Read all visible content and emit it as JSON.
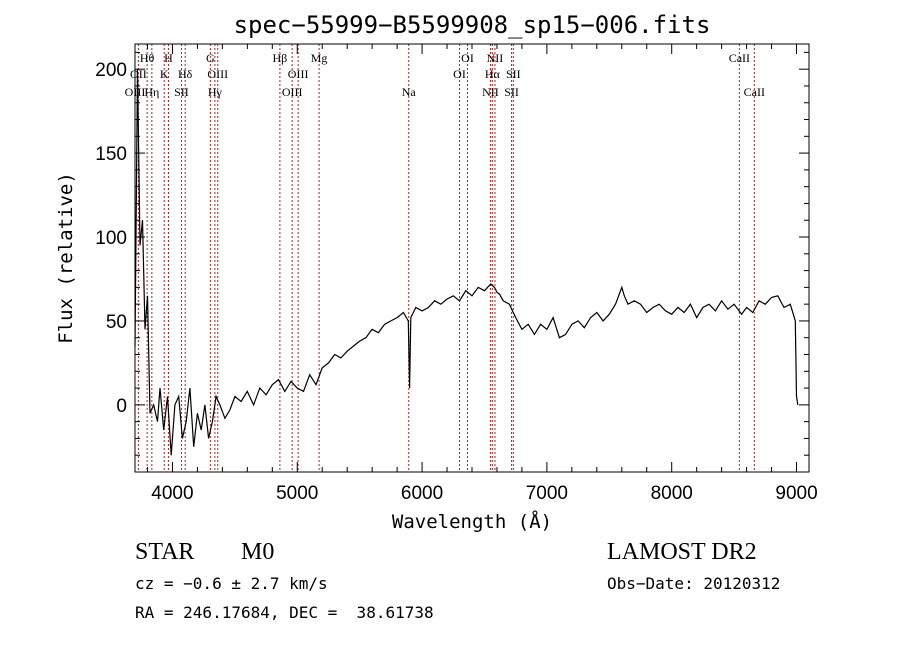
{
  "chart_data": {
    "type": "line",
    "title": "spec−55999−B5599908_sp15−006.fits",
    "xlabel": "Wavelength (Å)",
    "ylabel": "Flux (relative)",
    "xlim": [
      3700,
      9100
    ],
    "ylim": [
      -40,
      215
    ],
    "xticks": [
      4000,
      5000,
      6000,
      7000,
      8000,
      9000
    ],
    "yticks": [
      0,
      50,
      100,
      150,
      200
    ],
    "grid": false,
    "series": [
      {
        "color": "#000000",
        "x": [
          3700,
          3720,
          3740,
          3760,
          3780,
          3800,
          3820,
          3850,
          3880,
          3900,
          3930,
          3960,
          3990,
          4020,
          4050,
          4080,
          4110,
          4140,
          4170,
          4200,
          4230,
          4260,
          4290,
          4320,
          4350,
          4380,
          4420,
          4460,
          4500,
          4550,
          4600,
          4650,
          4700,
          4750,
          4800,
          4850,
          4900,
          4950,
          5000,
          5050,
          5100,
          5150,
          5200,
          5250,
          5300,
          5350,
          5400,
          5450,
          5500,
          5550,
          5600,
          5650,
          5700,
          5750,
          5800,
          5850,
          5890,
          5900,
          5910,
          5950,
          6000,
          6050,
          6100,
          6150,
          6200,
          6250,
          6300,
          6350,
          6400,
          6450,
          6500,
          6550,
          6580,
          6600,
          6620,
          6650,
          6700,
          6750,
          6800,
          6850,
          6900,
          6950,
          7000,
          7050,
          7100,
          7150,
          7200,
          7250,
          7300,
          7350,
          7400,
          7450,
          7500,
          7550,
          7600,
          7620,
          7650,
          7700,
          7750,
          7800,
          7850,
          7900,
          7950,
          8000,
          8050,
          8100,
          8150,
          8200,
          8250,
          8300,
          8350,
          8400,
          8450,
          8500,
          8540,
          8560,
          8600,
          8650,
          8700,
          8750,
          8800,
          8850,
          8900,
          8950,
          8990,
          9000,
          9010
        ],
        "y": [
          35,
          200,
          95,
          110,
          45,
          65,
          -5,
          0,
          -10,
          10,
          -15,
          5,
          -30,
          0,
          5,
          -20,
          -10,
          10,
          -25,
          -5,
          -15,
          0,
          -20,
          -10,
          5,
          0,
          -8,
          -3,
          5,
          2,
          8,
          0,
          10,
          6,
          12,
          15,
          8,
          14,
          10,
          8,
          18,
          12,
          22,
          25,
          30,
          28,
          32,
          35,
          38,
          40,
          45,
          43,
          48,
          50,
          52,
          55,
          50,
          10,
          52,
          58,
          56,
          58,
          62,
          60,
          63,
          65,
          62,
          68,
          65,
          70,
          68,
          72,
          70,
          67,
          66,
          62,
          60,
          52,
          45,
          48,
          42,
          48,
          45,
          52,
          40,
          42,
          48,
          50,
          46,
          52,
          55,
          50,
          54,
          60,
          70,
          65,
          60,
          62,
          60,
          55,
          58,
          60,
          56,
          54,
          58,
          55,
          60,
          52,
          58,
          60,
          56,
          62,
          57,
          60,
          56,
          54,
          58,
          55,
          62,
          60,
          64,
          65,
          58,
          60,
          50,
          5,
          0
        ]
      }
    ],
    "line_markers": [
      {
        "label": "Hθ",
        "x": 3797,
        "row": 1
      },
      {
        "label": "H",
        "x": 3968,
        "row": 1
      },
      {
        "label": "G",
        "x": 4304,
        "row": 1
      },
      {
        "label": "Hβ",
        "x": 4861,
        "row": 1
      },
      {
        "label": "Mg",
        "x": 5175,
        "row": 1
      },
      {
        "label": "OI",
        "x": 6364,
        "row": 1
      },
      {
        "label": "NII",
        "x": 6584,
        "row": 1
      },
      {
        "label": "CaII",
        "x": 8542,
        "row": 1
      },
      {
        "label": "OII",
        "x": 3727,
        "row": 2
      },
      {
        "label": "K",
        "x": 3934,
        "row": 2
      },
      {
        "label": "Hδ",
        "x": 4102,
        "row": 2
      },
      {
        "label": "OIII",
        "x": 4363,
        "row": 2
      },
      {
        "label": "OIII",
        "x": 5007,
        "row": 2
      },
      {
        "label": "OI",
        "x": 6300,
        "row": 2
      },
      {
        "label": "Hα",
        "x": 6563,
        "row": 2
      },
      {
        "label": "SII",
        "x": 6731,
        "row": 2
      },
      {
        "label": "OIII",
        "x": 3700,
        "row": 3
      },
      {
        "label": "Hη",
        "x": 3835,
        "row": 3
      },
      {
        "label": "SII",
        "x": 4072,
        "row": 3
      },
      {
        "label": "Hγ",
        "x": 4340,
        "row": 3
      },
      {
        "label": "OIII",
        "x": 4959,
        "row": 3
      },
      {
        "label": "Na",
        "x": 5893,
        "row": 3
      },
      {
        "label": "NII",
        "x": 6548,
        "row": 3
      },
      {
        "label": "SII",
        "x": 6717,
        "row": 3
      },
      {
        "label": "CaII",
        "x": 8662,
        "row": 3
      }
    ]
  },
  "info": {
    "object_class": "STAR",
    "subclass": "M0",
    "survey": "LAMOST DR2",
    "redshift": "cz = −0.6 ± 2.7 km/s",
    "obs_date": "Obs−Date: 20120312",
    "coords": "RA = 246.17684, DEC =  38.61738"
  },
  "colors": {
    "marker_line": "#b22222",
    "spectrum": "#000000"
  }
}
